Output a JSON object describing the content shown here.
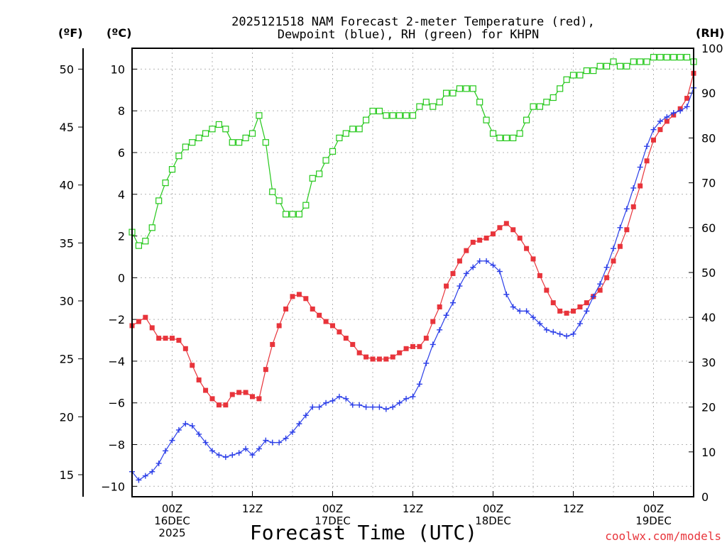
{
  "chart_data": {
    "type": "line",
    "title_line1": "2025121518 NAM Forecast 2-meter Temperature (red),",
    "title_line2": "Dewpoint (blue), RH (green) for KHPN",
    "xlabel": "Forecast Time (UTC)",
    "credit": "coolwx.com/models",
    "units": {
      "fahrenheit": "(ºF)",
      "celsius": "(ºC)",
      "rh": "(RH)"
    },
    "celsius_axis": {
      "ticks": [
        "−10",
        "−8",
        "−6",
        "−4",
        "−2",
        "0",
        "2",
        "4",
        "6",
        "8",
        "10"
      ],
      "range": [
        -10.5,
        11
      ]
    },
    "fahrenheit_axis": {
      "ticks": [
        "15",
        "20",
        "25",
        "30",
        "35",
        "40",
        "45",
        "50"
      ],
      "values": [
        15,
        20,
        25,
        30,
        35,
        40,
        45,
        50
      ]
    },
    "rh_axis": {
      "ticks": [
        "0",
        "10",
        "20",
        "30",
        "40",
        "50",
        "60",
        "70",
        "80",
        "90",
        "100"
      ],
      "range": [
        0,
        100
      ]
    },
    "x_axis": {
      "range_hours": [
        -6,
        78
      ],
      "ticks": [
        {
          "hour": 0,
          "lines": [
            "00Z",
            "16DEC",
            "2025"
          ]
        },
        {
          "hour": 12,
          "lines": [
            "12Z"
          ]
        },
        {
          "hour": 24,
          "lines": [
            "00Z",
            "17DEC"
          ]
        },
        {
          "hour": 36,
          "lines": [
            "12Z"
          ]
        },
        {
          "hour": 48,
          "lines": [
            "00Z",
            "18DEC"
          ]
        },
        {
          "hour": 60,
          "lines": [
            "12Z"
          ]
        },
        {
          "hour": 72,
          "lines": [
            "00Z",
            "19DEC"
          ]
        }
      ]
    },
    "hours": [
      -6,
      -5,
      -4,
      -3,
      -2,
      -1,
      0,
      1,
      2,
      3,
      4,
      5,
      6,
      7,
      8,
      9,
      10,
      11,
      12,
      13,
      14,
      15,
      16,
      17,
      18,
      19,
      20,
      21,
      22,
      23,
      24,
      25,
      26,
      27,
      28,
      29,
      30,
      31,
      32,
      33,
      34,
      35,
      36,
      37,
      38,
      39,
      40,
      41,
      42,
      43,
      44,
      45,
      46,
      47,
      48,
      49,
      50,
      51,
      52,
      53,
      54,
      55,
      56,
      57,
      58,
      59,
      60,
      61,
      62,
      63,
      64,
      65,
      66,
      67,
      68,
      69,
      70,
      71,
      72,
      73,
      74,
      75,
      76,
      77,
      78
    ],
    "series": [
      {
        "name": "Temperature",
        "units": "C",
        "color": "#e8343b",
        "marker": "filled-square",
        "values": [
          -2.3,
          -2.1,
          -1.9,
          -2.4,
          -2.9,
          -2.9,
          -2.9,
          -3.0,
          -3.4,
          -4.2,
          -4.9,
          -5.4,
          -5.8,
          -6.1,
          -6.1,
          -5.6,
          -5.5,
          -5.5,
          -5.7,
          -5.8,
          -4.4,
          -3.2,
          -2.3,
          -1.5,
          -0.9,
          -0.8,
          -1.0,
          -1.5,
          -1.8,
          -2.1,
          -2.3,
          -2.6,
          -2.9,
          -3.2,
          -3.6,
          -3.8,
          -3.9,
          -3.9,
          -3.9,
          -3.8,
          -3.6,
          -3.4,
          -3.3,
          -3.3,
          -2.9,
          -2.1,
          -1.4,
          -0.4,
          0.2,
          0.8,
          1.3,
          1.7,
          1.8,
          1.9,
          2.1,
          2.4,
          2.6,
          2.3,
          1.9,
          1.4,
          0.9,
          0.1,
          -0.6,
          -1.2,
          -1.6,
          -1.7,
          -1.6,
          -1.4,
          -1.2,
          -0.9,
          -0.6,
          0.0,
          0.8,
          1.5,
          2.3,
          3.4,
          4.4,
          5.6,
          6.6,
          7.1,
          7.5,
          7.8,
          8.1,
          8.6,
          9.8
        ]
      },
      {
        "name": "Dewpoint",
        "units": "C",
        "color": "#2b3ee8",
        "marker": "plus",
        "values": [
          -9.3,
          -9.7,
          -9.5,
          -9.3,
          -8.9,
          -8.3,
          -7.8,
          -7.3,
          -7.0,
          -7.1,
          -7.5,
          -7.9,
          -8.3,
          -8.5,
          -8.6,
          -8.5,
          -8.4,
          -8.2,
          -8.5,
          -8.2,
          -7.8,
          -7.9,
          -7.9,
          -7.7,
          -7.4,
          -7.0,
          -6.6,
          -6.2,
          -6.2,
          -6.0,
          -5.9,
          -5.7,
          -5.8,
          -6.1,
          -6.1,
          -6.2,
          -6.2,
          -6.2,
          -6.3,
          -6.2,
          -6.0,
          -5.8,
          -5.7,
          -5.1,
          -4.1,
          -3.2,
          -2.5,
          -1.8,
          -1.2,
          -0.4,
          0.2,
          0.5,
          0.8,
          0.8,
          0.6,
          0.3,
          -0.8,
          -1.4,
          -1.6,
          -1.6,
          -1.9,
          -2.2,
          -2.5,
          -2.6,
          -2.7,
          -2.8,
          -2.7,
          -2.2,
          -1.6,
          -0.9,
          -0.3,
          0.5,
          1.4,
          2.4,
          3.3,
          4.3,
          5.3,
          6.3,
          7.1,
          7.5,
          7.7,
          7.9,
          8.0,
          8.2,
          9.1
        ]
      },
      {
        "name": "RH",
        "units": "%",
        "color": "#24c81a",
        "marker": "open-square",
        "values": [
          59,
          56,
          57,
          60,
          66,
          70,
          73,
          76,
          78,
          79,
          80,
          81,
          82,
          83,
          82,
          79,
          79,
          80,
          81,
          85,
          79,
          68,
          66,
          63,
          63,
          63,
          65,
          71,
          72,
          75,
          77,
          80,
          81,
          82,
          82,
          84,
          86,
          86,
          85,
          85,
          85,
          85,
          85,
          87,
          88,
          87,
          88,
          90,
          90,
          91,
          91,
          91,
          88,
          84,
          81,
          80,
          80,
          80,
          81,
          84,
          87,
          87,
          88,
          89,
          91,
          93,
          94,
          94,
          95,
          95,
          96,
          96,
          97,
          96,
          96,
          97,
          97,
          97,
          98,
          98,
          98,
          98,
          98,
          98,
          97
        ]
      }
    ]
  }
}
